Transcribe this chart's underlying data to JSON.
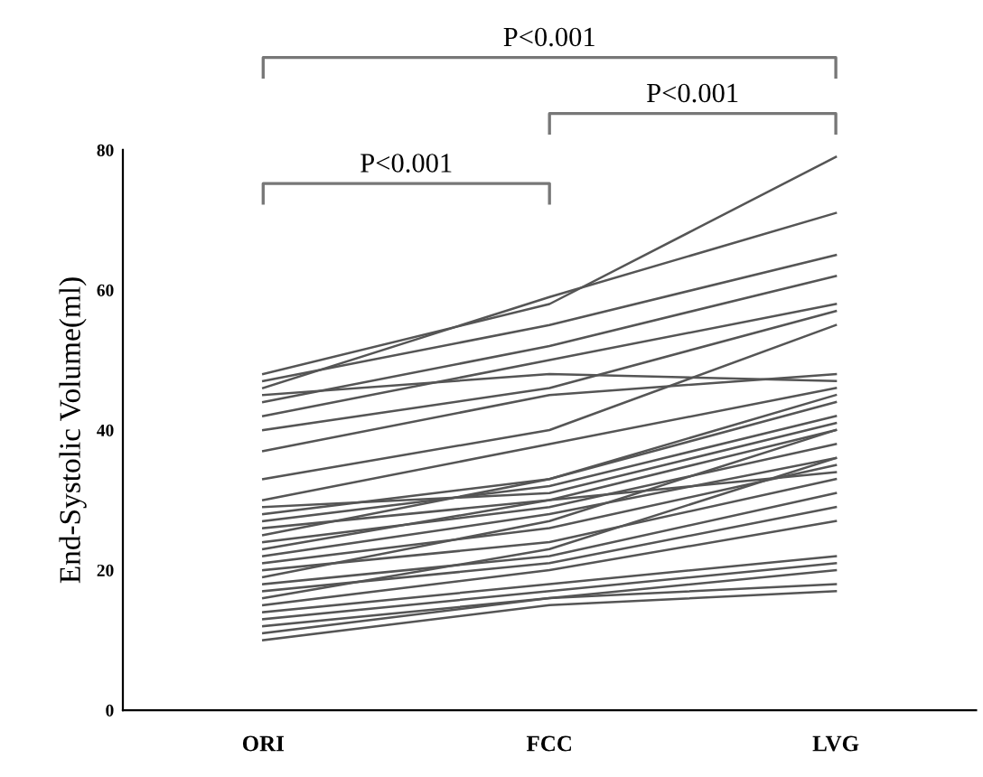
{
  "chart_data": {
    "type": "line",
    "ylabel": "End-Systolic Volume(ml)",
    "categories": [
      "ORI",
      "FCC",
      "LVG"
    ],
    "ylim": [
      0,
      80
    ],
    "yticks": [
      0,
      20,
      40,
      60,
      80
    ],
    "grid": false,
    "marker": "none",
    "line_style": "solid",
    "annotations": [
      "P<0.001",
      "P<0.001",
      "P<0.001"
    ],
    "series": [
      {
        "color": "#555555",
        "values": [
          48,
          58,
          79
        ]
      },
      {
        "color": "#555555",
        "values": [
          46,
          59,
          71
        ]
      },
      {
        "color": "#555555",
        "values": [
          47,
          55,
          65
        ]
      },
      {
        "color": "#555555",
        "values": [
          44,
          52,
          62
        ]
      },
      {
        "color": "#555555",
        "values": [
          42,
          50,
          58
        ]
      },
      {
        "color": "#555555",
        "values": [
          40,
          46,
          57
        ]
      },
      {
        "color": "#555555",
        "values": [
          37,
          45,
          48
        ]
      },
      {
        "color": "#555555",
        "values": [
          45,
          48,
          47
        ]
      },
      {
        "color": "#555555",
        "values": [
          33,
          40,
          55
        ]
      },
      {
        "color": "#555555",
        "values": [
          30,
          38,
          46
        ]
      },
      {
        "color": "#555555",
        "values": [
          28,
          33,
          45
        ]
      },
      {
        "color": "#555555",
        "values": [
          27,
          32,
          42
        ]
      },
      {
        "color": "#555555",
        "values": [
          29,
          31,
          41
        ]
      },
      {
        "color": "#555555",
        "values": [
          26,
          30,
          40
        ]
      },
      {
        "color": "#555555",
        "values": [
          25,
          33,
          44
        ]
      },
      {
        "color": "#555555",
        "values": [
          24,
          29,
          38
        ]
      },
      {
        "color": "#555555",
        "values": [
          22,
          28,
          36
        ]
      },
      {
        "color": "#555555",
        "values": [
          21,
          26,
          35
        ]
      },
      {
        "color": "#555555",
        "values": [
          20,
          24,
          33
        ]
      },
      {
        "color": "#555555",
        "values": [
          19,
          27,
          40
        ]
      },
      {
        "color": "#555555",
        "values": [
          18,
          22,
          31
        ]
      },
      {
        "color": "#555555",
        "values": [
          17,
          21,
          29
        ]
      },
      {
        "color": "#555555",
        "values": [
          15,
          20,
          27
        ]
      },
      {
        "color": "#555555",
        "values": [
          14,
          18,
          22
        ]
      },
      {
        "color": "#555555",
        "values": [
          13,
          17,
          21
        ]
      },
      {
        "color": "#555555",
        "values": [
          12,
          16,
          20
        ]
      },
      {
        "color": "#555555",
        "values": [
          11,
          16,
          18
        ]
      },
      {
        "color": "#555555",
        "values": [
          10,
          15,
          17
        ]
      },
      {
        "color": "#555555",
        "values": [
          16,
          23,
          36
        ]
      },
      {
        "color": "#555555",
        "values": [
          23,
          30,
          34
        ]
      }
    ]
  }
}
